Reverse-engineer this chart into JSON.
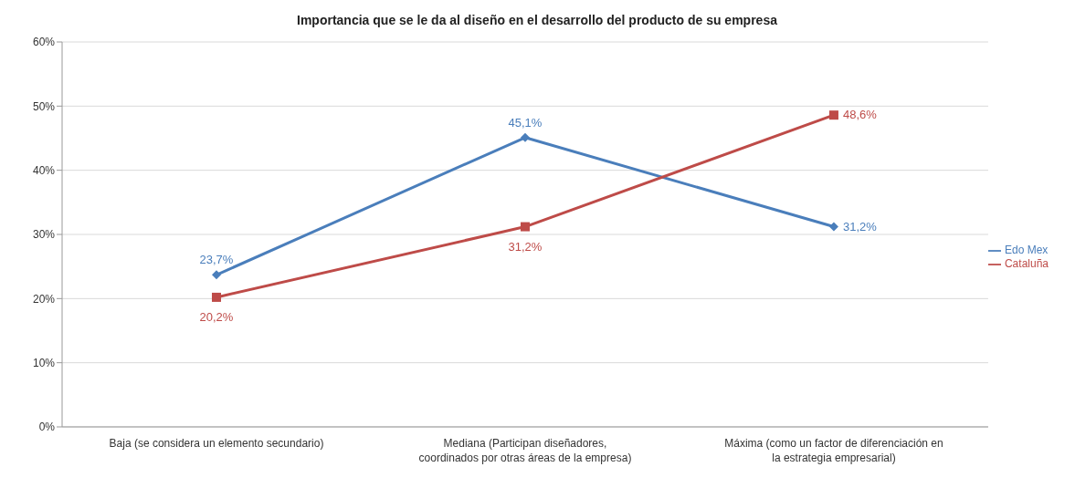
{
  "chart_data": {
    "type": "line",
    "title": "Importancia que se le da al diseño en el desarrollo del producto de su empresa",
    "categories": [
      "Baja (se considera un elemento secundario)",
      "Mediana (Participan diseñadores, coordinados por otras áreas de la empresa)",
      "Máxima (como un factor de diferenciación en la estrategia empresarial)"
    ],
    "series": [
      {
        "name": "Edo Mex",
        "color": "#4a7ebb",
        "values": [
          23.7,
          45.1,
          31.2
        ],
        "value_labels": [
          "23,7%",
          "45,1%",
          "31,2%"
        ],
        "marker": "diamond"
      },
      {
        "name": "Cataluña",
        "color": "#be4b48",
        "values": [
          20.2,
          31.2,
          48.6
        ],
        "value_labels": [
          "20,2%",
          "31,2%",
          "48,6%"
        ],
        "marker": "square"
      }
    ],
    "ylim": [
      0,
      60
    ],
    "yticks": [
      {
        "value": 0,
        "label": "0%"
      },
      {
        "value": 10,
        "label": "10%"
      },
      {
        "value": 20,
        "label": "20%"
      },
      {
        "value": 30,
        "label": "30%"
      },
      {
        "value": 40,
        "label": "40%"
      },
      {
        "value": 50,
        "label": "50%"
      },
      {
        "value": 60,
        "label": "60%"
      }
    ],
    "grid": "y",
    "legend": "right",
    "line_style": "solid"
  }
}
